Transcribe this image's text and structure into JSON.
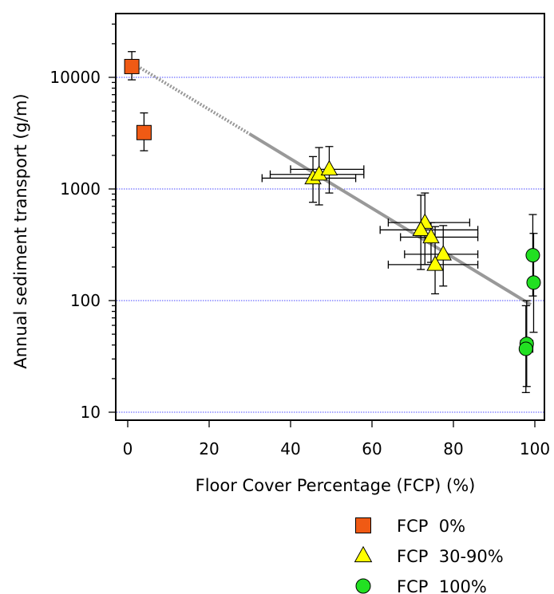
{
  "chart_data": {
    "type": "scatter",
    "title": "",
    "xlabel": "Floor Cover Percentage (FCP) (%)",
    "ylabel": "Annual sediment transport (g/m)",
    "xlim": [
      -3,
      103
    ],
    "ylim": [
      8,
      30000
    ],
    "y_scale": "log",
    "x_ticks": [
      0,
      20,
      40,
      60,
      80,
      100
    ],
    "x_tick_labels": [
      "0",
      "20",
      "40",
      "60",
      "80",
      "100"
    ],
    "y_ticks": [
      10,
      100,
      1000,
      10000
    ],
    "y_tick_labels": [
      "10",
      "100",
      "1000",
      "10000"
    ],
    "grid": "horizontal dotted at y ticks",
    "legend_position": "bottom-right, below plot",
    "colors": {
      "square": "#f05a14",
      "triangle": "#ffff00",
      "circle": "#22e022",
      "trend": "#999999",
      "grid": "#4a4aff"
    },
    "series": [
      {
        "name": "FCP  0%",
        "marker": "square",
        "points": [
          {
            "x": 1,
            "y": 12500,
            "y_lo": 9500,
            "y_hi": 17000
          },
          {
            "x": 4,
            "y": 3200,
            "y_lo": 2200,
            "y_hi": 4800
          }
        ]
      },
      {
        "name": "FCP  30-90%",
        "marker": "triangle",
        "points": [
          {
            "x": 45.5,
            "y": 1250,
            "x_lo": 33,
            "x_hi": 56,
            "y_lo": 760,
            "y_hi": 1950
          },
          {
            "x": 47,
            "y": 1350,
            "x_lo": 35,
            "x_hi": 58,
            "y_lo": 720,
            "y_hi": 2350
          },
          {
            "x": 49.5,
            "y": 1500,
            "x_lo": 40,
            "x_hi": 58,
            "y_lo": 920,
            "y_hi": 2400
          },
          {
            "x": 73,
            "y": 500,
            "x_lo": 64,
            "x_hi": 84,
            "y_lo": 210,
            "y_hi": 920
          },
          {
            "x": 72,
            "y": 430,
            "x_lo": 62,
            "x_hi": 86,
            "y_lo": 190,
            "y_hi": 880
          },
          {
            "x": 74.5,
            "y": 370,
            "x_lo": 67,
            "x_hi": 86,
            "y_lo": 220,
            "y_hi": 500
          },
          {
            "x": 77.5,
            "y": 260,
            "x_lo": 68,
            "x_hi": 86,
            "y_lo": 135,
            "y_hi": 470
          },
          {
            "x": 75.5,
            "y": 210,
            "x_lo": 64,
            "x_hi": 86,
            "y_lo": 115,
            "y_hi": 460
          }
        ]
      },
      {
        "name": "FCP  100%",
        "marker": "circle",
        "points": [
          {
            "x": 99.5,
            "y": 255,
            "y_lo": 110,
            "y_hi": 590
          },
          {
            "x": 99.7,
            "y": 145,
            "y_lo": 52,
            "y_hi": 400
          },
          {
            "x": 98,
            "y": 41,
            "x_lo": 96.5,
            "x_hi": 99.5,
            "y_lo": 17,
            "y_hi": 100
          },
          {
            "x": 97.8,
            "y": 37,
            "x_lo": 96.5,
            "x_hi": 99.5,
            "y_lo": 15,
            "y_hi": 90
          }
        ]
      }
    ],
    "trend_line": {
      "dotted_from": {
        "x": 1,
        "y": 13500
      },
      "dotted_to": {
        "x": 30,
        "y": 3100
      },
      "solid_to": {
        "x": 99,
        "y": 92
      }
    }
  }
}
